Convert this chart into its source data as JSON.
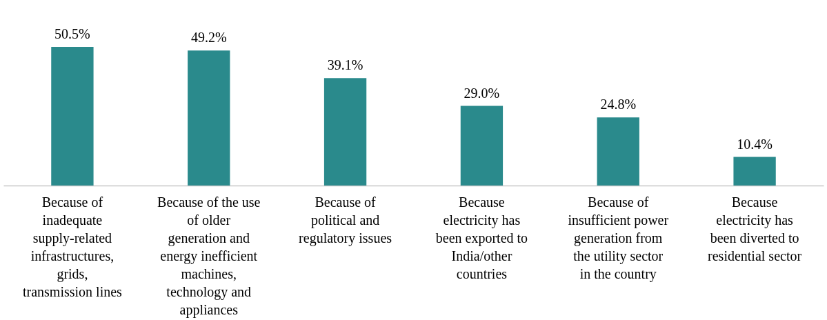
{
  "chart_data": {
    "type": "bar",
    "categories": [
      "Because of inadequate supply-related infrastructures, grids, transmission lines",
      "Because of the use of older generation and energy inefficient machines, technology and appliances",
      "Because of political and regulatory issues",
      "Because electricity has been exported to India/other countries",
      "Because of insufficient power generation from the utility sector in the country",
      "Because electricity has been diverted to residential sector"
    ],
    "values": [
      50.5,
      49.2,
      39.1,
      29.0,
      24.8,
      10.4
    ],
    "value_labels": [
      "50.5%",
      "49.2%",
      "39.1%",
      "29.0%",
      "24.8%",
      "10.4%"
    ],
    "color": "#2a8a8c"
  }
}
